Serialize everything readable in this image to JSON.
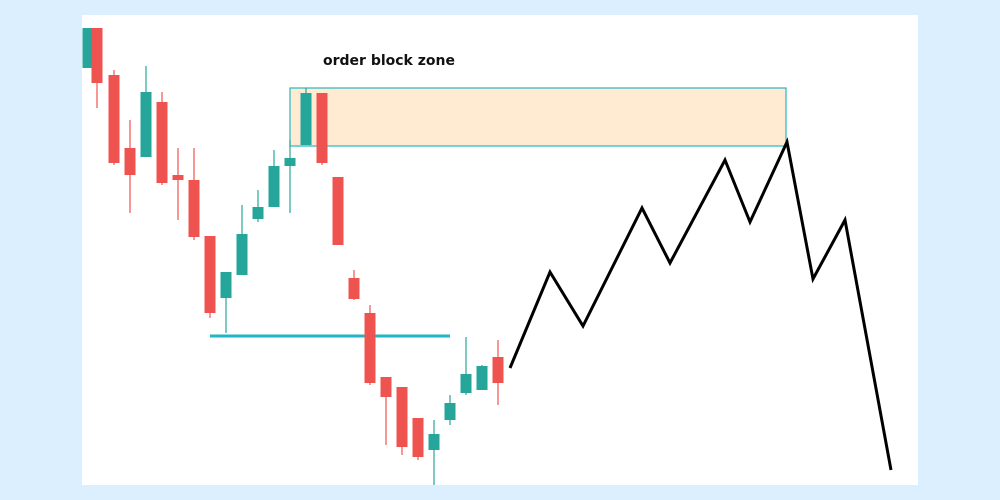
{
  "annotation": {
    "label": "order block zone"
  }
}
